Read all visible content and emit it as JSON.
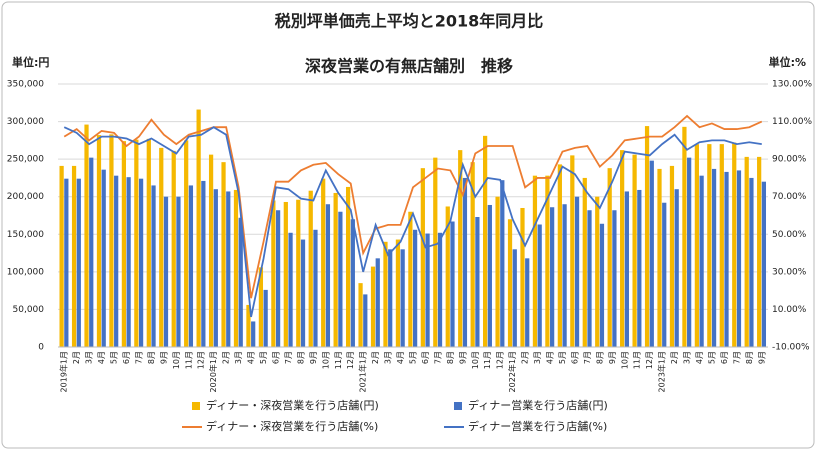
{
  "chart_data": {
    "type": "bar-line",
    "title": "税別坪単価売上平均と2018年同月比",
    "subtitle": "深夜営業の有無店舗別　推移",
    "y_unit": "単位:円",
    "y2_unit": "単位:%",
    "categories": [
      "2019年1月",
      "2月",
      "3月",
      "4月",
      "5月",
      "6月",
      "7月",
      "8月",
      "9月",
      "10月",
      "11月",
      "12月",
      "2020年1月",
      "2月",
      "3月",
      "4月",
      "5月",
      "6月",
      "7月",
      "8月",
      "9月",
      "10月",
      "11月",
      "12月",
      "2021年1月",
      "2月",
      "3月",
      "4月",
      "5月",
      "6月",
      "7月",
      "8月",
      "9月",
      "10月",
      "11月",
      "12月",
      "2022年1月",
      "2月",
      "3月",
      "4月",
      "5月",
      "6月",
      "7月",
      "8月",
      "9月",
      "10月",
      "11月",
      "12月",
      "2023年1月",
      "2月",
      "3月",
      "4月",
      "5月",
      "6月",
      "7月",
      "8月",
      "9月"
    ],
    "ylim": [
      0,
      350000
    ],
    "yticks": [
      0,
      {
        "value": 50000,
        "label": "50,000"
      },
      {
        "value": 100000,
        "label": "100,000"
      },
      {
        "value": 150000,
        "label": "150,000"
      },
      {
        "value": 200000,
        "label": "200,000"
      },
      {
        "value": 250000,
        "label": "250,000"
      },
      {
        "value": 300000,
        "label": "300,000"
      },
      {
        "value": 350000,
        "label": "350,000"
      }
    ],
    "y2lim": [
      -10,
      130
    ],
    "y2ticks": [
      {
        "value": -10,
        "label": "-10.00%"
      },
      {
        "value": 10,
        "label": "10.00%"
      },
      {
        "value": 30,
        "label": "30.00%"
      },
      {
        "value": 50,
        "label": "50.00%"
      },
      {
        "value": 70,
        "label": "70.00%"
      },
      {
        "value": 90,
        "label": "90.00%"
      },
      {
        "value": 110,
        "label": "110.00%"
      },
      {
        "value": 130,
        "label": "130.00%"
      }
    ],
    "grid": true,
    "series": [
      {
        "name": "ディナー・深夜営業を行う店舗(円)",
        "kind": "bar",
        "color": "#f5b800",
        "values": [
          241000,
          241000,
          296000,
          282000,
          283000,
          274000,
          276000,
          277000,
          265000,
          261000,
          275000,
          316000,
          256000,
          246000,
          209000,
          56000,
          106000,
          195000,
          193000,
          196000,
          208000,
          224000,
          205000,
          213000,
          85000,
          107000,
          140000,
          143000,
          180000,
          238000,
          252000,
          187000,
          262000,
          246000,
          281000,
          200000,
          170000,
          185000,
          228000,
          228000,
          243000,
          255000,
          225000,
          200000,
          238000,
          262000,
          256000,
          294000,
          237000,
          241000,
          293000,
          270000,
          270000,
          270000,
          272000,
          253000,
          253000
        ]
      },
      {
        "name": "ディナー営業を行う店舗(円)",
        "kind": "bar",
        "color": "#4472c4",
        "values": [
          224000,
          224000,
          252000,
          236000,
          228000,
          226000,
          224000,
          215000,
          200000,
          200000,
          215000,
          221000,
          210000,
          207000,
          172000,
          34000,
          76000,
          182000,
          152000,
          143000,
          156000,
          190000,
          180000,
          170000,
          70000,
          118000,
          130000,
          130000,
          156000,
          151000,
          152000,
          167000,
          225000,
          173000,
          189000,
          222000,
          130000,
          118000,
          163000,
          186000,
          190000,
          200000,
          182000,
          164000,
          182000,
          207000,
          209000,
          248000,
          192000,
          210000,
          252000,
          228000,
          237000,
          233000,
          235000,
          225000,
          220000
        ]
      },
      {
        "name": "ディナー・深夜営業を行う店舗(%)",
        "kind": "line",
        "axis": "y2",
        "color": "#ed7d31",
        "values": [
          102,
          106,
          100,
          105,
          104,
          97,
          102,
          111,
          103,
          98,
          103,
          105,
          107,
          107,
          75,
          16,
          46,
          78,
          78,
          84,
          87,
          88,
          82,
          77,
          40,
          53,
          55,
          55,
          75,
          80,
          85,
          84,
          71,
          93,
          97,
          97,
          97,
          75,
          80,
          80,
          94,
          96,
          97,
          86,
          92,
          100,
          101,
          102,
          102,
          107,
          113,
          107,
          109,
          106,
          106,
          107,
          110
        ]
      },
      {
        "name": "ディナー営業を行う店舗(%)",
        "kind": "line",
        "axis": "y2",
        "color": "#4472c4",
        "values": [
          107,
          104,
          98,
          102,
          102,
          101,
          98,
          101,
          97,
          93,
          102,
          103,
          107,
          103,
          72,
          6,
          37,
          75,
          74,
          69,
          68,
          84,
          72,
          63,
          30,
          55,
          39,
          46,
          61,
          43,
          45,
          57,
          87,
          70,
          80,
          79,
          58,
          44,
          58,
          72,
          86,
          82,
          72,
          64,
          78,
          94,
          93,
          92,
          98,
          103,
          95,
          99,
          100,
          100,
          98,
          99,
          98
        ]
      }
    ]
  }
}
